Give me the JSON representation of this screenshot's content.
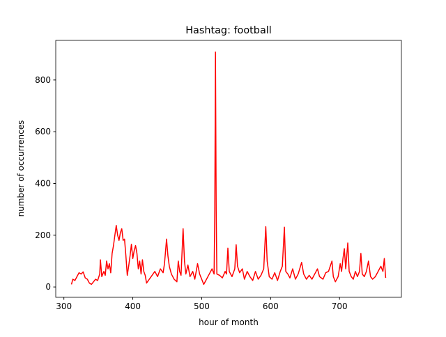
{
  "chart_data": {
    "type": "line",
    "title": "Hashtag: football",
    "x_label": "hour of month",
    "y_label": "number of occurrences",
    "x": [
      311,
      313,
      316,
      319,
      322,
      325,
      328,
      331,
      334,
      337,
      340,
      343,
      346,
      349,
      352,
      353,
      355,
      358,
      360,
      362,
      364,
      366,
      368,
      370,
      372,
      374,
      376,
      378,
      380,
      382,
      384,
      386,
      388,
      390,
      392,
      394,
      396,
      398,
      400,
      402,
      404,
      406,
      408,
      410,
      412,
      414,
      416,
      418,
      420,
      424,
      428,
      432,
      436,
      440,
      444,
      446,
      449,
      451,
      453,
      456,
      460,
      464,
      466,
      468,
      470,
      473,
      475,
      477,
      480,
      483,
      487,
      490,
      494,
      497,
      500,
      503,
      507,
      511,
      515,
      518,
      519,
      520,
      521,
      522,
      526,
      530,
      534,
      536,
      538,
      540,
      544,
      548,
      550,
      552,
      555,
      559,
      562,
      566,
      570,
      574,
      578,
      582,
      586,
      590,
      593,
      595,
      598,
      602,
      606,
      610,
      614,
      617,
      620,
      622,
      625,
      628,
      632,
      636,
      640,
      645,
      648,
      652,
      656,
      660,
      664,
      668,
      671,
      676,
      680,
      684,
      689,
      691,
      694,
      698,
      701,
      703,
      705,
      707,
      709,
      712,
      714,
      717,
      720,
      723,
      726,
      729,
      731,
      733,
      736,
      739,
      742,
      745,
      748,
      752,
      756,
      760,
      763,
      765,
      767
    ],
    "series": [
      {
        "name": "football",
        "color": "#ff0000",
        "values": [
          10,
          30,
          25,
          40,
          55,
          50,
          58,
          35,
          30,
          15,
          10,
          20,
          30,
          25,
          50,
          105,
          40,
          60,
          45,
          100,
          70,
          90,
          55,
          130,
          160,
          200,
          238,
          200,
          180,
          210,
          225,
          180,
          185,
          120,
          45,
          80,
          120,
          165,
          110,
          140,
          160,
          130,
          70,
          100,
          50,
          105,
          60,
          45,
          15,
          30,
          45,
          60,
          40,
          70,
          55,
          90,
          185,
          120,
          80,
          50,
          30,
          20,
          100,
          60,
          45,
          225,
          100,
          50,
          85,
          40,
          60,
          30,
          90,
          50,
          30,
          10,
          30,
          50,
          70,
          50,
          300,
          908,
          300,
          50,
          45,
          35,
          60,
          50,
          150,
          60,
          40,
          70,
          163,
          80,
          55,
          70,
          30,
          60,
          40,
          25,
          60,
          30,
          45,
          70,
          233,
          100,
          40,
          30,
          55,
          25,
          60,
          80,
          231,
          60,
          50,
          35,
          70,
          30,
          50,
          95,
          50,
          30,
          45,
          30,
          50,
          70,
          40,
          30,
          55,
          60,
          100,
          40,
          20,
          40,
          90,
          60,
          110,
          148,
          70,
          170,
          60,
          40,
          30,
          60,
          40,
          60,
          130,
          50,
          40,
          60,
          100,
          40,
          30,
          40,
          60,
          80,
          60,
          110,
          35
        ]
      }
    ],
    "xlim": [
      288.2,
      789.8
    ],
    "ylim": [
      -40,
      953
    ],
    "xticks": [
      300,
      400,
      500,
      600,
      700
    ],
    "yticks": [
      0,
      200,
      400,
      600,
      800
    ]
  }
}
